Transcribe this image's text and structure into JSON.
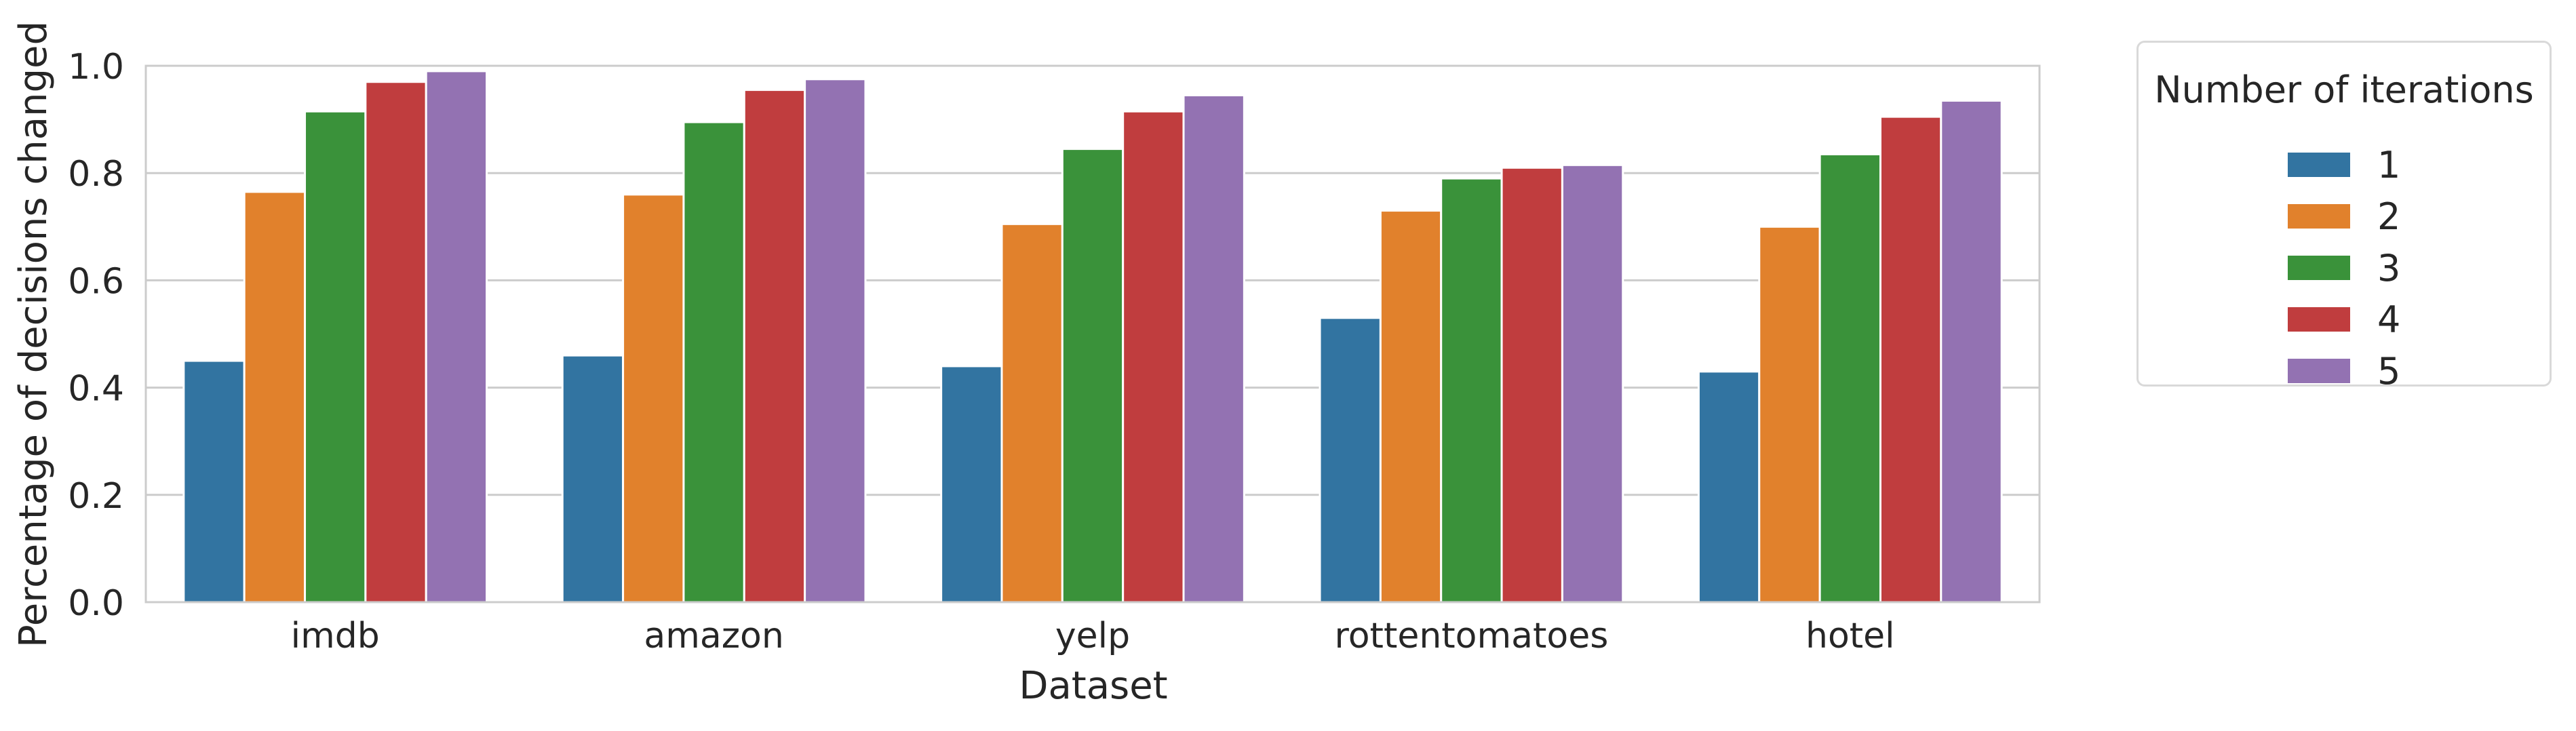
{
  "chart_data": {
    "type": "bar",
    "xlabel": "Dataset",
    "ylabel": "Percentage of decisions changed",
    "ylim": [
      0,
      1.0
    ],
    "yticks": [
      "0.0",
      "0.2",
      "0.4",
      "0.6",
      "0.8",
      "1.0"
    ],
    "grid": true,
    "legend_position": "outside-right",
    "legend_title": "Number of iterations",
    "categories": [
      "imdb",
      "amazon",
      "yelp",
      "rottentomatoes",
      "hotel"
    ],
    "series": [
      {
        "name": "1",
        "color": "#3274a1",
        "values": [
          0.45,
          0.46,
          0.44,
          0.53,
          0.43
        ]
      },
      {
        "name": "2",
        "color": "#e1812c",
        "values": [
          0.765,
          0.76,
          0.705,
          0.73,
          0.7
        ]
      },
      {
        "name": "3",
        "color": "#3a923a",
        "values": [
          0.915,
          0.895,
          0.845,
          0.79,
          0.835
        ]
      },
      {
        "name": "4",
        "color": "#c03d3e",
        "values": [
          0.97,
          0.955,
          0.915,
          0.81,
          0.905
        ]
      },
      {
        "name": "5",
        "color": "#9372b2",
        "values": [
          0.99,
          0.975,
          0.945,
          0.815,
          0.935
        ]
      }
    ]
  }
}
